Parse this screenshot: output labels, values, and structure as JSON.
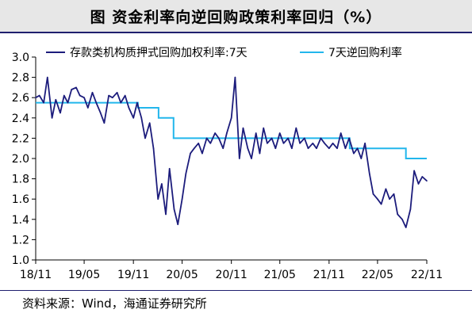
{
  "title": "图  资金利率向逆回购政策利率回归（%）",
  "source": "资料来源：Wind，海通证券研究所",
  "colors": {
    "dr007": "#1c1c7c",
    "policy": "#22b6ec",
    "axis": "#000000"
  },
  "chart_data": {
    "type": "line",
    "title": "图  资金利率向逆回购政策利率回归（%）",
    "xlabel": "",
    "ylabel": "",
    "ylim": [
      1.0,
      3.0
    ],
    "yticks": [
      "1.0",
      "1.2",
      "1.4",
      "1.6",
      "1.8",
      "2.0",
      "2.2",
      "2.4",
      "2.6",
      "2.8",
      "3.0"
    ],
    "xlim": [
      "2018-11",
      "2022-11"
    ],
    "xticks": [
      "18/11",
      "19/05",
      "19/11",
      "20/05",
      "20/11",
      "21/05",
      "21/11",
      "22/05",
      "22/11"
    ],
    "legend_position": "top",
    "grid": false,
    "series": [
      {
        "name": "存款类机构质押式回购加权利率:7天",
        "x": [
          "2018-11-01",
          "2018-11-15",
          "2018-12-01",
          "2018-12-15",
          "2019-01-01",
          "2019-01-15",
          "2019-02-01",
          "2019-02-15",
          "2019-03-01",
          "2019-03-15",
          "2019-04-01",
          "2019-04-15",
          "2019-05-01",
          "2019-05-15",
          "2019-06-01",
          "2019-06-15",
          "2019-07-01",
          "2019-07-15",
          "2019-08-01",
          "2019-08-15",
          "2019-09-01",
          "2019-09-15",
          "2019-10-01",
          "2019-10-15",
          "2019-11-01",
          "2019-11-15",
          "2019-12-01",
          "2019-12-15",
          "2020-01-01",
          "2020-01-15",
          "2020-02-01",
          "2020-02-15",
          "2020-03-01",
          "2020-03-15",
          "2020-04-01",
          "2020-04-15",
          "2020-05-01",
          "2020-05-15",
          "2020-06-01",
          "2020-06-15",
          "2020-07-01",
          "2020-07-15",
          "2020-08-01",
          "2020-08-15",
          "2020-09-01",
          "2020-09-15",
          "2020-10-01",
          "2020-10-15",
          "2020-11-01",
          "2020-11-15",
          "2020-12-01",
          "2020-12-15",
          "2021-01-01",
          "2021-01-15",
          "2021-02-01",
          "2021-02-15",
          "2021-03-01",
          "2021-03-15",
          "2021-04-01",
          "2021-04-15",
          "2021-05-01",
          "2021-05-15",
          "2021-06-01",
          "2021-06-15",
          "2021-07-01",
          "2021-07-15",
          "2021-08-01",
          "2021-08-15",
          "2021-09-01",
          "2021-09-15",
          "2021-10-01",
          "2021-10-15",
          "2021-11-01",
          "2021-11-15",
          "2021-12-01",
          "2021-12-15",
          "2022-01-01",
          "2022-01-15",
          "2022-02-01",
          "2022-02-15",
          "2022-03-01",
          "2022-03-15",
          "2022-04-01",
          "2022-04-15",
          "2022-05-01",
          "2022-05-15",
          "2022-06-01",
          "2022-06-15",
          "2022-07-01",
          "2022-07-15",
          "2022-08-01",
          "2022-08-15",
          "2022-09-01",
          "2022-09-15",
          "2022-10-01",
          "2022-10-15",
          "2022-11-01"
        ],
        "values": [
          2.6,
          2.62,
          2.55,
          2.8,
          2.4,
          2.58,
          2.45,
          2.62,
          2.55,
          2.68,
          2.7,
          2.62,
          2.6,
          2.5,
          2.65,
          2.55,
          2.45,
          2.35,
          2.62,
          2.6,
          2.65,
          2.55,
          2.62,
          2.5,
          2.4,
          2.55,
          2.4,
          2.2,
          2.35,
          2.1,
          1.6,
          1.75,
          1.45,
          1.9,
          1.5,
          1.35,
          1.6,
          1.85,
          2.05,
          2.1,
          2.15,
          2.05,
          2.2,
          2.15,
          2.25,
          2.2,
          2.1,
          2.25,
          2.4,
          2.8,
          2.0,
          2.3,
          2.1,
          2.0,
          2.25,
          2.05,
          2.3,
          2.15,
          2.2,
          2.1,
          2.25,
          2.15,
          2.2,
          2.1,
          2.3,
          2.15,
          2.2,
          2.1,
          2.15,
          2.1,
          2.2,
          2.15,
          2.1,
          2.15,
          2.1,
          2.25,
          2.1,
          2.2,
          2.05,
          2.1,
          2.0,
          2.15,
          1.85,
          1.65,
          1.6,
          1.55,
          1.7,
          1.6,
          1.65,
          1.45,
          1.4,
          1.32,
          1.5,
          1.88,
          1.75,
          1.82,
          1.78
        ]
      },
      {
        "name": "7天逆回购利率",
        "steps": [
          {
            "x": "2018-11-01",
            "value": 2.55
          },
          {
            "x": "2019-11-18",
            "value": 2.5
          },
          {
            "x": "2020-02-03",
            "value": 2.4
          },
          {
            "x": "2020-03-30",
            "value": 2.2
          },
          {
            "x": "2022-01-17",
            "value": 2.1
          },
          {
            "x": "2022-08-15",
            "value": 2.0
          },
          {
            "x": "2022-11-01",
            "value": 2.0
          }
        ]
      }
    ]
  }
}
